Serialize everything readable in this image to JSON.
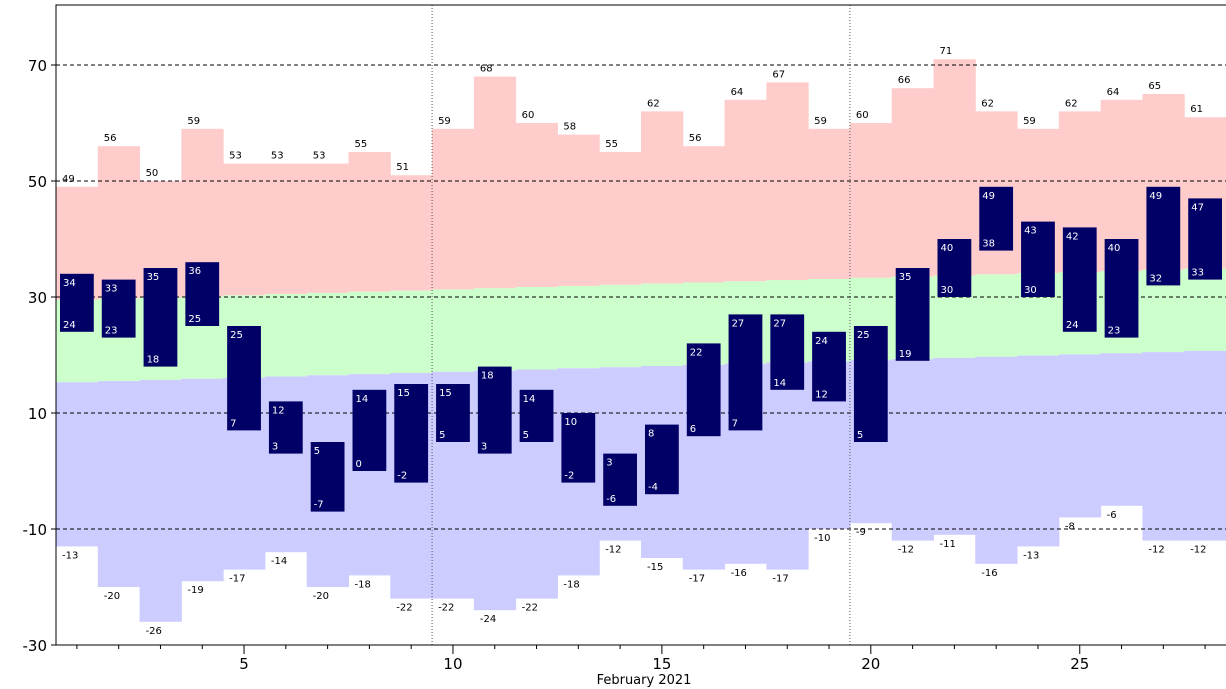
{
  "chart_data": {
    "type": "bar",
    "xlabel": "February 2021",
    "ylim": [
      -30,
      80
    ],
    "xlim": [
      0.5,
      28.5
    ],
    "y_ticks": [
      -30,
      -10,
      10,
      30,
      50,
      70
    ],
    "x_ticks": [
      5,
      10,
      15,
      20,
      25
    ],
    "days": [
      1,
      2,
      3,
      4,
      5,
      6,
      7,
      8,
      9,
      10,
      11,
      12,
      13,
      14,
      15,
      16,
      17,
      18,
      19,
      20,
      21,
      22,
      23,
      24,
      25,
      26,
      27,
      28
    ],
    "record_high": [
      49,
      56,
      50,
      59,
      53,
      53,
      53,
      55,
      51,
      59,
      68,
      60,
      58,
      55,
      62,
      56,
      64,
      67,
      59,
      60,
      66,
      71,
      62,
      59,
      62,
      64,
      65,
      61
    ],
    "record_low": [
      -13,
      -20,
      -26,
      -19,
      -17,
      -14,
      -20,
      -18,
      -22,
      -22,
      -24,
      -22,
      -18,
      -12,
      -15,
      -17,
      -16,
      -17,
      -10,
      -9,
      -12,
      -11,
      -16,
      -13,
      -8,
      -6,
      -12,
      -12
    ],
    "normal_high": [
      29.5,
      29.7,
      29.9,
      30.1,
      30.3,
      30.5,
      30.7,
      30.9,
      31.1,
      31.3,
      31.5,
      31.7,
      31.9,
      32.1,
      32.3,
      32.5,
      32.7,
      32.9,
      33.1,
      33.3,
      33.5,
      33.7,
      33.9,
      34.1,
      34.3,
      34.5,
      34.7,
      34.9
    ],
    "normal_low": [
      15.3,
      15.5,
      15.7,
      15.9,
      16.1,
      16.3,
      16.5,
      16.7,
      16.9,
      17.1,
      17.3,
      17.5,
      17.7,
      17.9,
      18.1,
      18.3,
      18.5,
      18.7,
      18.9,
      19.1,
      19.3,
      19.5,
      19.7,
      19.9,
      20.1,
      20.3,
      20.5,
      20.7
    ],
    "observed_high": [
      34,
      33,
      35,
      36,
      25,
      12,
      5,
      14,
      15,
      15,
      18,
      14,
      10,
      3,
      8,
      22,
      27,
      27,
      24,
      25,
      35,
      40,
      49,
      43,
      42,
      40,
      49,
      47
    ],
    "observed_low": [
      24,
      23,
      18,
      25,
      7,
      3,
      -7,
      0,
      -2,
      5,
      3,
      5,
      -2,
      -6,
      -4,
      6,
      7,
      14,
      12,
      5,
      19,
      30,
      38,
      30,
      24,
      23,
      32,
      33
    ],
    "colors": {
      "record": "#ffcccc",
      "normal": "#ccffcc",
      "below_normal": "#ccccff",
      "observed": "#000066"
    },
    "grid": true
  }
}
